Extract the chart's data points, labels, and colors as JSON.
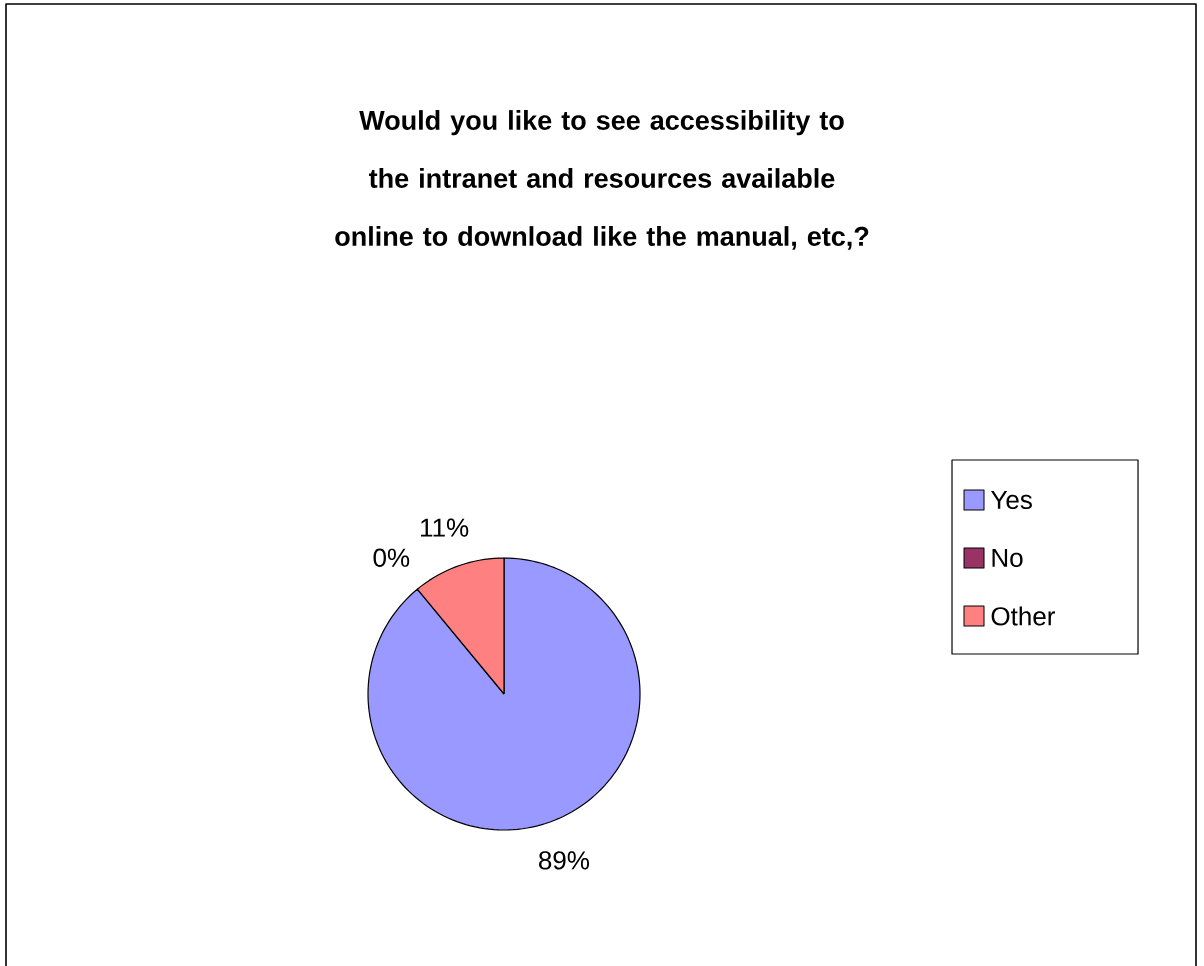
{
  "chart_data": {
    "type": "pie",
    "title": "Would you like to see accessibility to the intranet and resources available online to download like the manual, etc,?",
    "categories": [
      "Yes",
      "No",
      "Other"
    ],
    "values": [
      89,
      0,
      11
    ],
    "value_labels": [
      "89%",
      "0%",
      "11%"
    ],
    "colors": [
      "#9999ff",
      "#993366",
      "#ff8080"
    ],
    "legend": "right"
  }
}
